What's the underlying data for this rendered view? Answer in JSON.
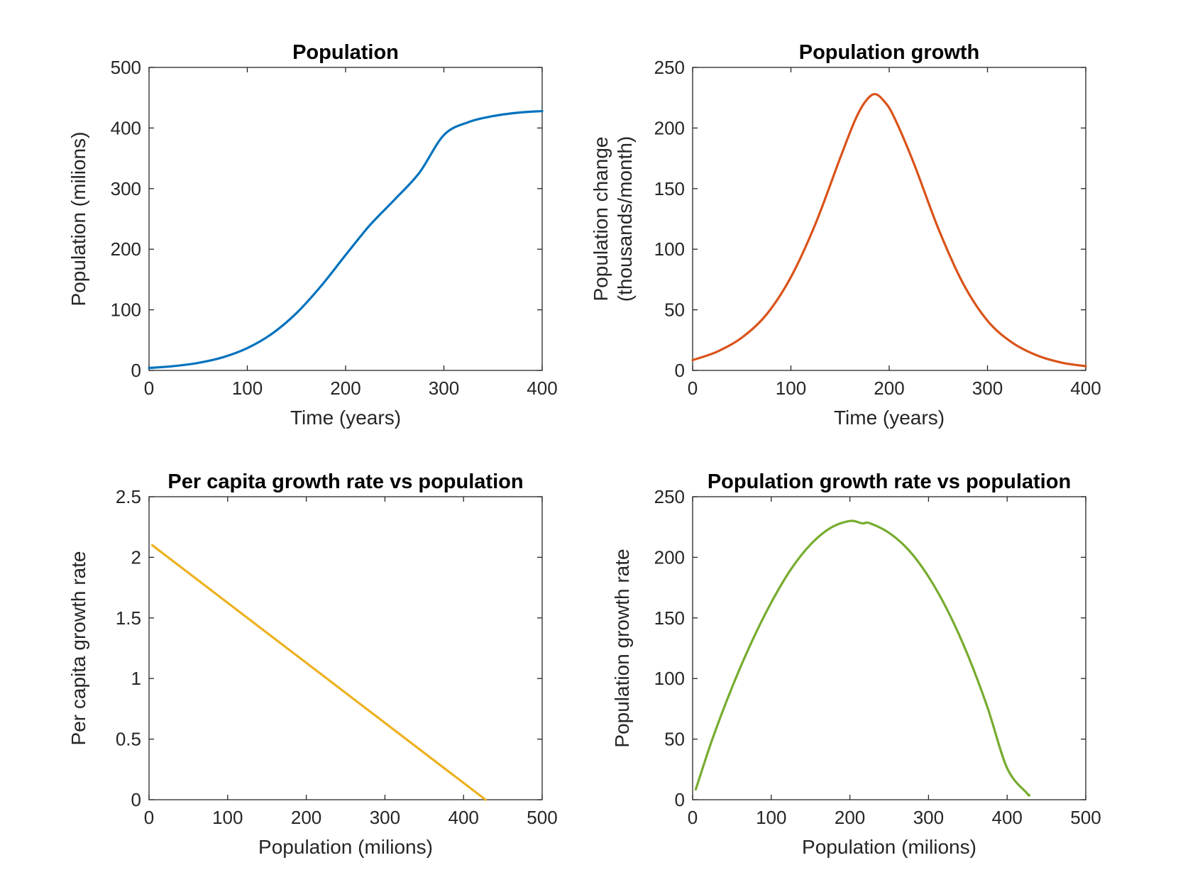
{
  "chart_data": [
    {
      "type": "line",
      "title": "Population",
      "xlabel": "Time (years)",
      "ylabel": [
        "Population (milions)"
      ],
      "xlim": [
        0,
        400
      ],
      "ylim": [
        0,
        500
      ],
      "xticks": [
        0,
        100,
        200,
        300,
        400
      ],
      "yticks": [
        0,
        100,
        200,
        300,
        400,
        500
      ],
      "xtick_labels": [
        "0",
        "100",
        "200",
        "300",
        "400"
      ],
      "ytick_labels": [
        "0",
        "100",
        "200",
        "300",
        "400",
        "500"
      ],
      "grid": false,
      "color": "#0072BD",
      "series": [
        {
          "x": [
            0,
            25,
            50,
            75,
            100,
            125,
            150,
            175,
            200,
            225,
            250,
            275,
            300,
            325,
            350,
            375,
            400
          ],
          "values": [
            4,
            7.1,
            12.4,
            21.6,
            36.8,
            60.4,
            94.5,
            139.2,
            190.4,
            240.2,
            282.1,
            326.1,
            388.4,
            409.7,
            419.7,
            425.2,
            428.0
          ]
        }
      ]
    },
    {
      "type": "line",
      "title": "Population growth",
      "xlabel": "Time (years)",
      "ylabel": [
        "Population change",
        "(thousands/month)"
      ],
      "xlim": [
        0,
        400
      ],
      "ylim": [
        0,
        250
      ],
      "xticks": [
        0,
        100,
        200,
        300,
        400
      ],
      "yticks": [
        0,
        50,
        100,
        150,
        200,
        250
      ],
      "xtick_labels": [
        "0",
        "100",
        "200",
        "300",
        "400"
      ],
      "ytick_labels": [
        "0",
        "50",
        "100",
        "150",
        "200",
        "250"
      ],
      "grid": false,
      "color": "#D95319",
      "series": [
        {
          "x": [
            0,
            25,
            50,
            75,
            100,
            125,
            150,
            165,
            175,
            185,
            195,
            205,
            225,
            250,
            275,
            300,
            325,
            350,
            375,
            400
          ],
          "values": [
            8.5,
            15.5,
            27,
            46,
            77,
            121,
            175,
            206,
            221,
            228,
            222,
            209,
            171,
            117,
            72,
            41,
            23,
            12.5,
            6.5,
            3.5
          ]
        }
      ]
    },
    {
      "type": "line",
      "title": "Per capita growth rate vs population",
      "xlabel": "Population (milions)",
      "ylabel": [
        "Per capita growth rate"
      ],
      "xlim": [
        0,
        500
      ],
      "ylim": [
        0,
        2.5
      ],
      "xticks": [
        0,
        100,
        200,
        300,
        400,
        500
      ],
      "yticks": [
        0,
        0.5,
        1,
        1.5,
        2,
        2.5
      ],
      "xtick_labels": [
        "0",
        "100",
        "200",
        "300",
        "400",
        "500"
      ],
      "ytick_labels": [
        "0",
        "0.5",
        "1",
        "1.5",
        "2",
        "2.5"
      ],
      "grid": false,
      "color": "#EDB120",
      "series": [
        {
          "x": [
            4,
            428
          ],
          "values": [
            2.1,
            0
          ]
        }
      ]
    },
    {
      "type": "line",
      "title": "Population growth rate vs population",
      "xlabel": "Population (milions)",
      "ylabel": [
        "Population growth rate"
      ],
      "xlim": [
        0,
        500
      ],
      "ylim": [
        0,
        250
      ],
      "xticks": [
        0,
        100,
        200,
        300,
        400,
        500
      ],
      "yticks": [
        0,
        50,
        100,
        150,
        200,
        250
      ],
      "xtick_labels": [
        "0",
        "100",
        "200",
        "300",
        "400",
        "500"
      ],
      "ytick_labels": [
        "0",
        "50",
        "100",
        "150",
        "200",
        "250"
      ],
      "grid": false,
      "color": "#77AC30",
      "series": [
        {
          "x": [
            4,
            25,
            50,
            75,
            100,
            125,
            150,
            175,
            200,
            216,
            225,
            250,
            275,
            300,
            325,
            350,
            375,
            400,
            425,
            428
          ],
          "values": [
            8.5,
            49.8,
            92.5,
            130.1,
            162.7,
            190.1,
            210.6,
            224.1,
            230.0,
            228.0,
            228.2,
            220.1,
            205.8,
            184.0,
            155.2,
            119.3,
            76.2,
            26.0,
            5.5,
            4.0
          ]
        }
      ]
    }
  ]
}
